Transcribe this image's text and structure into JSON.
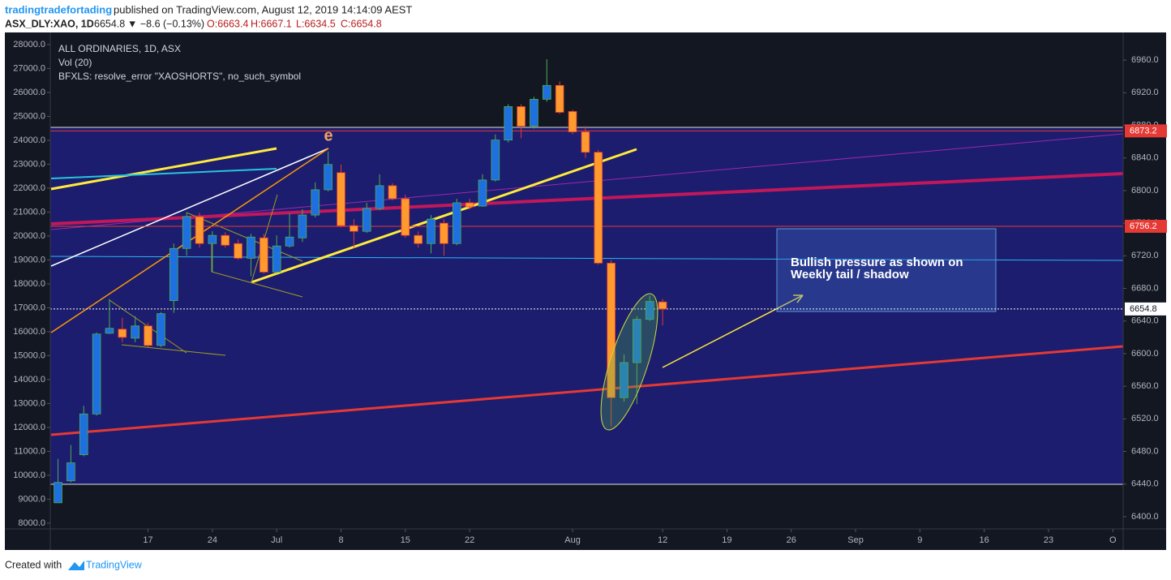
{
  "header": {
    "author": "tradingtradefortading",
    "published": "published on TradingView.com, August 12, 2019 14:14:09 AEST",
    "symbol": "ASX_DLY:XAO, 1D",
    "last": "6654.8",
    "change": "▼ −8.6 (−0.13%)",
    "open": "O:6663.4",
    "high": "H:6667.1",
    "low": "L:6634.5",
    "close": "C:6654.8"
  },
  "legend": [
    "ALL ORDINARIES, 1D, ASX",
    "Vol (20)",
    "BFXLS: resolve_error \"XAOSHORTS\", no_such_symbol"
  ],
  "footer": {
    "created": "Created with",
    "brand": "TradingView"
  },
  "chart_data": {
    "type": "candlestick",
    "up_color": "#1e6fe0",
    "down_color": "#ff9a2e",
    "up_wick": "#4caf50",
    "down_wick": "#e53935",
    "grid": false,
    "open": [
      6417,
      6444,
      6476,
      6526,
      6625,
      6630,
      6619,
      6634,
      6610,
      6665,
      6729,
      6768,
      6735,
      6745,
      6735,
      6717,
      6742,
      6700,
      6732,
      6742,
      6770,
      6801,
      6822,
      6757,
      6750,
      6778,
      6806,
      6790,
      6745,
      6735,
      6760,
      6735,
      6785,
      6781,
      6813,
      6862,
      6903,
      6879,
      6912,
      6929,
      6897,
      6872,
      6847,
      6711,
      6546,
      6589,
      6642,
      6663.4
    ],
    "high": [
      6471,
      6488,
      6536,
      6626,
      6667,
      6644,
      6646,
      6638,
      6651,
      6735,
      6773,
      6773,
      6750,
      6749,
      6740,
      6747,
      6747,
      6745,
      6772,
      6777,
      6810,
      6848,
      6832,
      6765,
      6785,
      6820,
      6809,
      6795,
      6750,
      6770,
      6765,
      6790,
      6790,
      6820,
      6869,
      6906,
      6906,
      6915,
      6961,
      6934,
      6899,
      6879,
      6850,
      6715,
      6599,
      6646,
      6671,
      6667.1
    ],
    "low": [
      6417,
      6442,
      6474,
      6524,
      6624,
      6614,
      6614,
      6608,
      6608,
      6650,
      6720,
      6730,
      6700,
      6730,
      6715,
      6695,
      6698,
      6698,
      6730,
      6737,
      6767,
      6799,
      6755,
      6730,
      6748,
      6776,
      6788,
      6742,
      6730,
      6723,
      6720,
      6733,
      6777,
      6780,
      6811,
      6859,
      6864,
      6876,
      6909,
      6894,
      6869,
      6840,
      6709,
      6511,
      6541,
      6538,
      6640,
      6634.5
    ],
    "close": [
      6442,
      6466,
      6526,
      6624,
      6631,
      6620,
      6634,
      6610,
      6649,
      6729,
      6768,
      6735,
      6745,
      6733,
      6717,
      6743,
      6700,
      6732,
      6743,
      6770,
      6801,
      6832,
      6757,
      6750,
      6778,
      6806,
      6790,
      6745,
      6735,
      6765,
      6735,
      6785,
      6780,
      6813,
      6862,
      6903,
      6879,
      6912,
      6929,
      6896,
      6872,
      6847,
      6711,
      6546,
      6589,
      6642,
      6664,
      6654.8
    ],
    "xlim": [
      -0.6,
      82.8
    ],
    "xticks": [
      {
        "value": 7,
        "label": "17"
      },
      {
        "value": 12,
        "label": "24"
      },
      {
        "value": 17,
        "label": "Jul"
      },
      {
        "value": 22,
        "label": "8"
      },
      {
        "value": 27,
        "label": "15"
      },
      {
        "value": 32,
        "label": "22"
      },
      {
        "value": 40,
        "label": "Aug"
      },
      {
        "value": 47,
        "label": "12"
      },
      {
        "value": 52,
        "label": "19"
      },
      {
        "value": 57,
        "label": "26"
      },
      {
        "value": 62,
        "label": "Sep"
      },
      {
        "value": 67,
        "label": "9"
      },
      {
        "value": 72,
        "label": "16"
      },
      {
        "value": 77,
        "label": "23"
      },
      {
        "value": 82,
        "label": "O"
      }
    ],
    "ylim": [
      6385,
      6987
    ],
    "yticks": [
      {
        "value": 6400,
        "label": "6400.0"
      },
      {
        "value": 6440,
        "label": "6440.0"
      },
      {
        "value": 6480,
        "label": "6480.0"
      },
      {
        "value": 6520,
        "label": "6520.0"
      },
      {
        "value": 6560,
        "label": "6560.0"
      },
      {
        "value": 6600,
        "label": "6600.0"
      },
      {
        "value": 6640,
        "label": "6640.0"
      },
      {
        "value": 6680,
        "label": "6680.0"
      },
      {
        "value": 6720,
        "label": "6720.0"
      },
      {
        "value": 6760,
        "label": "6760.0"
      },
      {
        "value": 6800,
        "label": "6800.0"
      },
      {
        "value": 6840,
        "label": "6840.0"
      },
      {
        "value": 6880,
        "label": "6880.0"
      },
      {
        "value": 6920,
        "label": "6920.0"
      },
      {
        "value": 6960,
        "label": "6960.0"
      }
    ],
    "y2lim": [
      7760,
      28270
    ],
    "y2ticks": [
      {
        "value": 8000,
        "label": "8000.0"
      },
      {
        "value": 9000,
        "label": "9000.0"
      },
      {
        "value": 10000,
        "label": "10000.0"
      },
      {
        "value": 11000,
        "label": "11000.0"
      },
      {
        "value": 12000,
        "label": "12000.0"
      },
      {
        "value": 13000,
        "label": "13000.0"
      },
      {
        "value": 14000,
        "label": "14000.0"
      },
      {
        "value": 15000,
        "label": "15000.0"
      },
      {
        "value": 16000,
        "label": "16000.0"
      },
      {
        "value": 17000,
        "label": "17000.0"
      },
      {
        "value": 18000,
        "label": "18000.0"
      },
      {
        "value": 19000,
        "label": "19000.0"
      },
      {
        "value": 20000,
        "label": "20000.0"
      },
      {
        "value": 21000,
        "label": "21000.0"
      },
      {
        "value": 22000,
        "label": "22000.0"
      },
      {
        "value": 23000,
        "label": "23000.0"
      },
      {
        "value": 24000,
        "label": "24000.0"
      },
      {
        "value": 25000,
        "label": "25000.0"
      },
      {
        "value": 26000,
        "label": "26000.0"
      },
      {
        "value": 27000,
        "label": "27000.0"
      },
      {
        "value": 28000,
        "label": "28000.0"
      }
    ],
    "price_lines": [
      {
        "value": 6873.2,
        "label": "6873.2",
        "color": "#e53935"
      },
      {
        "value": 6756.2,
        "label": "6756.2",
        "color": "#e53935"
      },
      {
        "value": 6654.8,
        "label": "6654.8",
        "color": "#ffffff"
      }
    ],
    "annotations": [
      "e",
      "Bullish pressure as shown on",
      "Weekly tail / shadow"
    ]
  }
}
